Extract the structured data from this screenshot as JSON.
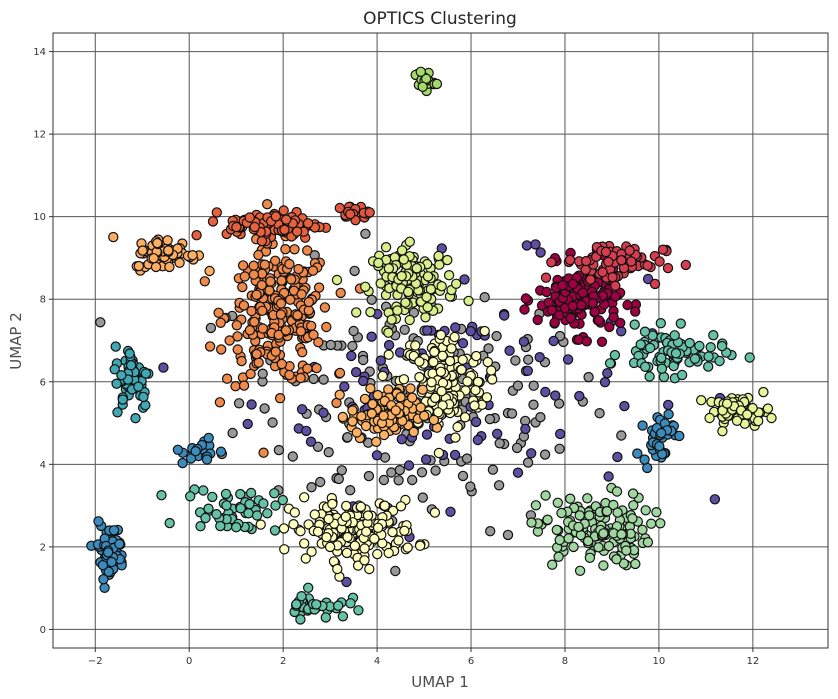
{
  "chart_data": {
    "type": "scatter",
    "title": "OPTICS Clustering",
    "xlabel": "UMAP 1",
    "ylabel": "UMAP 2",
    "xlim": [
      -2.9,
      13.6
    ],
    "ylim": [
      -0.45,
      14.45
    ],
    "xticks": [
      -2,
      0,
      2,
      4,
      6,
      8,
      10,
      12
    ],
    "yticks": [
      0,
      2,
      4,
      6,
      8,
      10,
      12,
      14
    ],
    "xtick_labels": [
      "−2",
      "0",
      "2",
      "4",
      "6",
      "8",
      "10",
      "12"
    ],
    "ytick_labels": [
      "0",
      "2",
      "4",
      "6",
      "8",
      "10",
      "12",
      "14"
    ],
    "grid": true,
    "legend": "none",
    "marker_edge_color": "#111111",
    "clusters": [
      {
        "color": "#f08a4b",
        "center": [
          1.9,
          7.6
        ],
        "spread": [
          1.0,
          1.5
        ],
        "count": 260
      },
      {
        "color": "#fdb163",
        "center": [
          4.2,
          5.2
        ],
        "spread": [
          0.7,
          0.55
        ],
        "count": 110
      },
      {
        "color": "#fdae61",
        "center": [
          -0.5,
          9.1
        ],
        "spread": [
          0.6,
          0.35
        ],
        "count": 70
      },
      {
        "color": "#e8613e",
        "center": [
          1.8,
          9.8
        ],
        "spread": [
          0.9,
          0.3
        ],
        "count": 90
      },
      {
        "color": "#e2553f",
        "center": [
          3.5,
          10.1
        ],
        "spread": [
          0.3,
          0.15
        ],
        "count": 20
      },
      {
        "color": "#ffffbf",
        "center": [
          5.4,
          6.0
        ],
        "spread": [
          0.8,
          1.1
        ],
        "count": 170
      },
      {
        "color": "#d9ef8b",
        "center": [
          4.8,
          8.4
        ],
        "spread": [
          0.8,
          0.75
        ],
        "count": 130
      },
      {
        "color": "#a0d7a1",
        "center": [
          8.6,
          2.4
        ],
        "spread": [
          1.1,
          0.8
        ],
        "count": 140
      },
      {
        "color": "#66c2a5",
        "center": [
          10.3,
          6.7
        ],
        "spread": [
          1.0,
          0.5
        ],
        "count": 80
      },
      {
        "color": "#66c2a5",
        "center": [
          0.9,
          2.9
        ],
        "spread": [
          0.9,
          0.5
        ],
        "count": 50
      },
      {
        "color": "#66c2a5",
        "center": [
          2.7,
          0.6
        ],
        "spread": [
          0.6,
          0.3
        ],
        "count": 35
      },
      {
        "color": "#a6d96a",
        "center": [
          5.0,
          13.3
        ],
        "spread": [
          0.2,
          0.25
        ],
        "count": 25
      },
      {
        "color": "#9e0142",
        "center": [
          8.3,
          8.0
        ],
        "spread": [
          0.8,
          0.75
        ],
        "count": 150
      },
      {
        "color": "#d53e4f",
        "center": [
          9.0,
          8.9
        ],
        "spread": [
          1.0,
          0.45
        ],
        "count": 70
      },
      {
        "color": "#3b8bbd",
        "center": [
          -1.7,
          1.9
        ],
        "spread": [
          0.3,
          0.6
        ],
        "count": 60
      },
      {
        "color": "#3b8bbd",
        "center": [
          10.0,
          4.7
        ],
        "spread": [
          0.3,
          0.6
        ],
        "count": 40
      },
      {
        "color": "#3b8bbd",
        "center": [
          0.3,
          4.3
        ],
        "spread": [
          0.4,
          0.3
        ],
        "count": 20
      },
      {
        "color": "#3fa8b4",
        "center": [
          -1.2,
          6.1
        ],
        "spread": [
          0.35,
          0.7
        ],
        "count": 60
      },
      {
        "color": "#ffffbf",
        "center": [
          3.5,
          2.4
        ],
        "spread": [
          1.2,
          0.65
        ],
        "count": 170
      },
      {
        "color": "#e6f598",
        "center": [
          11.7,
          5.3
        ],
        "spread": [
          0.6,
          0.3
        ],
        "count": 60
      },
      {
        "color": "#5e4fa2",
        "center": [
          5.5,
          6.0
        ],
        "spread": [
          3.8,
          2.6
        ],
        "count": 110
      },
      {
        "color": "#999999",
        "center": [
          5.0,
          5.6
        ],
        "spread": [
          3.6,
          2.9
        ],
        "count": 180
      }
    ]
  }
}
